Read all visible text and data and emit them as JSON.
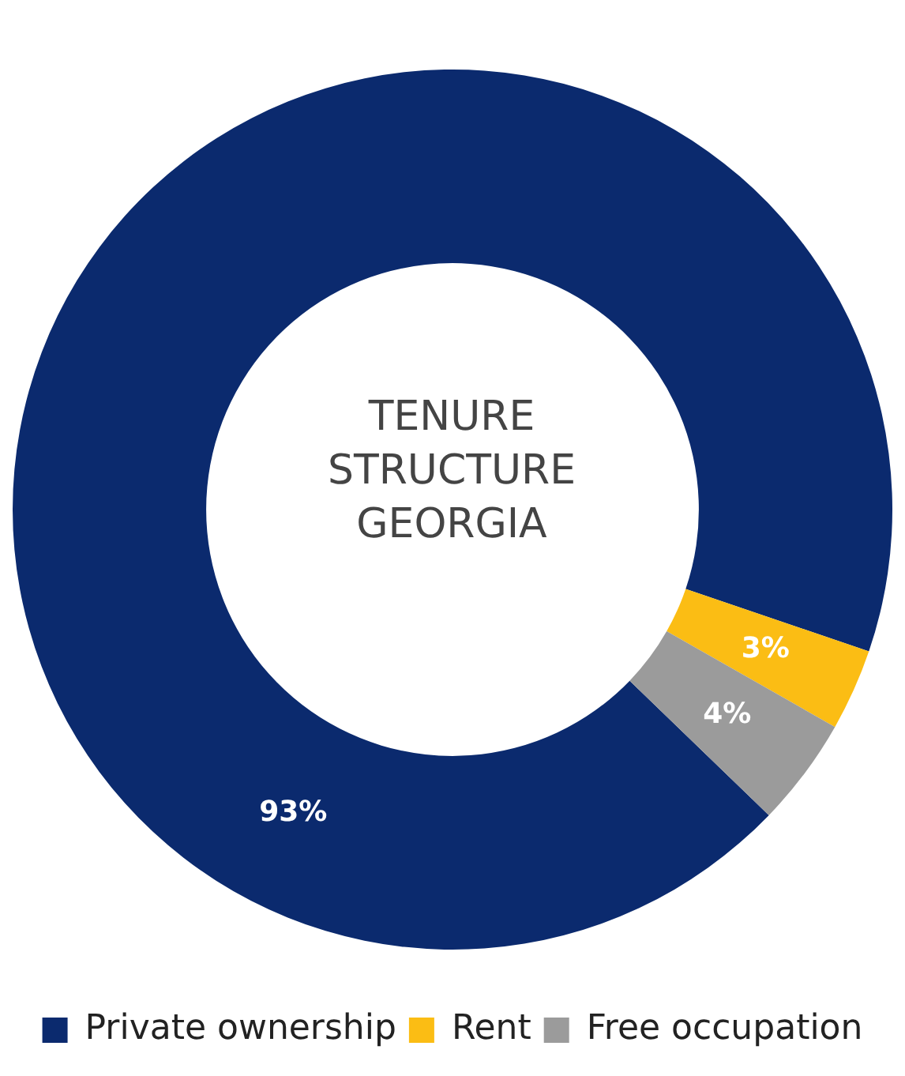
{
  "chart_data": {
    "type": "donut",
    "title": "TENURE STRUCTURE GEORGIA",
    "categories": [
      "Private ownership",
      "Rent",
      "Free occupation"
    ],
    "values": [
      93,
      3,
      4
    ],
    "colors": [
      "#0b2a6e",
      "#fbbd14",
      "#9b9b9b"
    ],
    "value_labels": [
      "93%",
      "3%",
      "4%"
    ],
    "legend": "bottom"
  }
}
